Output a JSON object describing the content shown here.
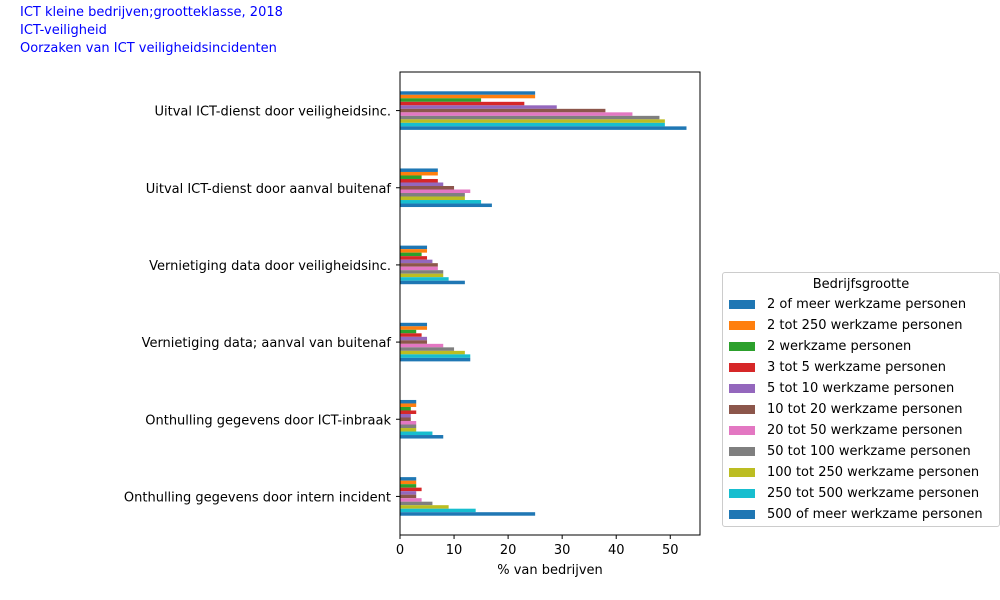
{
  "header": {
    "line1": "ICT kleine bedrijven;grootteklasse, 2018",
    "line2": "ICT-veiligheid",
    "line3": "Oorzaken van ICT veiligheidsincidenten"
  },
  "colors": {
    "header_text": "#0000ff"
  },
  "chart_data": {
    "type": "bar",
    "orientation": "horizontal",
    "xlabel": "% van bedrijven",
    "ylabel": "",
    "xlim": [
      0,
      55.5
    ],
    "xticks": [
      0,
      10,
      20,
      30,
      40,
      50
    ],
    "grid": false,
    "legend_title": "Bedrijfsgrootte",
    "legend_position": "right",
    "categories": [
      "Uitval ICT-dienst door veiligheidsinc.",
      "Uitval ICT-dienst door aanval buitenaf",
      "Vernietiging data door veiligheidsinc.",
      "Vernietiging data;  aanval van buitenaf",
      "Onthulling gegevens door ICT-inbraak",
      "Onthulling gegevens door intern incident"
    ],
    "series": [
      {
        "name": "2 of meer werkzame personen",
        "color": "#1f77b4",
        "values": [
          25,
          7,
          5,
          5,
          3,
          3
        ]
      },
      {
        "name": "2 tot 250 werkzame personen",
        "color": "#ff7f0e",
        "values": [
          25,
          7,
          5,
          5,
          3,
          3
        ]
      },
      {
        "name": "2 werkzame personen",
        "color": "#2ca02c",
        "values": [
          15,
          4,
          4,
          3,
          2,
          3
        ]
      },
      {
        "name": "3 tot 5 werkzame personen",
        "color": "#d62728",
        "values": [
          23,
          7,
          5,
          4,
          3,
          4
        ]
      },
      {
        "name": "5 tot 10 werkzame personen",
        "color": "#9467bd",
        "values": [
          29,
          8,
          6,
          5,
          2,
          3
        ]
      },
      {
        "name": "10 tot 20 werkzame personen",
        "color": "#8c564b",
        "values": [
          38,
          10,
          7,
          5,
          2,
          3
        ]
      },
      {
        "name": "20 tot 50 werkzame personen",
        "color": "#e377c2",
        "values": [
          43,
          13,
          7,
          8,
          3,
          4
        ]
      },
      {
        "name": "50 tot 100 werkzame personen",
        "color": "#7f7f7f",
        "values": [
          48,
          12,
          8,
          10,
          3,
          6
        ]
      },
      {
        "name": "100 tot 250 werkzame personen",
        "color": "#bcbd22",
        "values": [
          49,
          12,
          8,
          12,
          3,
          9
        ]
      },
      {
        "name": "250 tot 500 werkzame personen",
        "color": "#17becf",
        "values": [
          49,
          15,
          9,
          13,
          6,
          14
        ]
      },
      {
        "name": "500 of meer werkzame personen",
        "color": "#1f77b4",
        "values": [
          53,
          17,
          12,
          13,
          8,
          25
        ]
      }
    ]
  }
}
